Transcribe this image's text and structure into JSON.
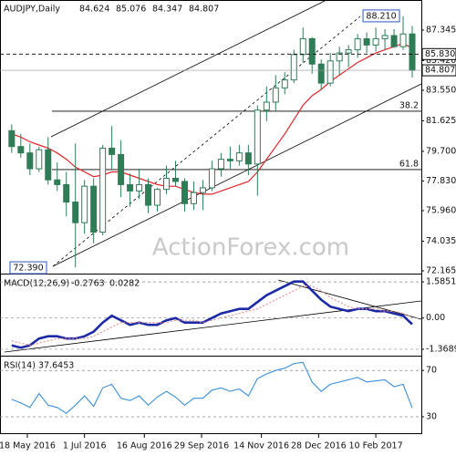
{
  "chart_data": [
    {
      "type": "candlestick",
      "title": "AUDJPY,Daily",
      "header_values": [
        84.624,
        85.076,
        84.347,
        84.807
      ],
      "x": [
        "2016-05-06",
        "2016-05-13",
        "2016-05-20",
        "2016-05-27",
        "2016-06-03",
        "2016-06-10",
        "2016-06-17",
        "2016-06-24",
        "2016-07-01",
        "2016-07-08",
        "2016-07-15",
        "2016-07-22",
        "2016-07-29",
        "2016-08-05",
        "2016-08-12",
        "2016-08-19",
        "2016-08-26",
        "2016-09-02",
        "2016-09-09",
        "2016-09-16",
        "2016-09-23",
        "2016-09-30",
        "2016-10-07",
        "2016-10-14",
        "2016-10-21",
        "2016-10-28",
        "2016-11-04",
        "2016-11-11",
        "2016-11-18",
        "2016-11-25",
        "2016-12-02",
        "2016-12-09",
        "2016-12-16",
        "2016-12-23",
        "2016-12-30",
        "2017-01-06",
        "2017-01-13",
        "2017-01-20",
        "2017-01-27",
        "2017-02-03",
        "2017-02-10",
        "2017-02-17",
        "2017-02-24",
        "2017-03-03",
        "2017-03-10"
      ],
      "open": [
        81.0,
        80.0,
        79.6,
        78.6,
        79.8,
        77.9,
        77.6,
        76.5,
        75.2,
        77.5,
        74.6,
        79.9,
        79.5,
        77.6,
        77.2,
        77.6,
        76.3,
        77.3,
        78.0,
        77.8,
        76.4,
        77.1,
        77.4,
        78.6,
        79.2,
        79.1,
        79.6,
        78.9,
        82.3,
        82.8,
        83.7,
        84.2,
        85.8,
        86.8,
        85.2,
        84.0,
        85.4,
        85.9,
        86.1,
        86.8,
        86.4,
        86.8,
        87.0,
        86.3,
        87.1
      ],
      "high": [
        81.4,
        80.8,
        80.2,
        80.0,
        80.6,
        79.0,
        78.4,
        80.2,
        77.9,
        78.0,
        80.1,
        81.3,
        80.4,
        78.3,
        78.6,
        78.0,
        77.4,
        78.8,
        79.1,
        78.0,
        77.8,
        77.9,
        79.1,
        79.6,
        80.0,
        80.1,
        80.1,
        82.6,
        83.8,
        84.5,
        84.7,
        86.1,
        87.5,
        86.9,
        85.5,
        85.9,
        86.3,
        86.4,
        87.1,
        87.2,
        87.5,
        87.4,
        87.4,
        88.21,
        87.6
      ],
      "low": [
        79.6,
        79.3,
        78.2,
        78.4,
        77.6,
        77.2,
        75.6,
        72.39,
        74.5,
        73.9,
        74.4,
        78.5,
        76.8,
        76.2,
        76.7,
        75.8,
        75.9,
        77.0,
        77.5,
        75.9,
        76.0,
        76.0,
        77.2,
        78.1,
        78.6,
        78.8,
        78.2,
        76.9,
        81.6,
        82.2,
        83.3,
        84.0,
        85.3,
        84.6,
        83.6,
        83.8,
        84.5,
        85.0,
        85.6,
        85.9,
        86.0,
        86.1,
        86.2,
        86.1,
        84.347
      ],
      "close": [
        80.0,
        79.6,
        78.6,
        79.8,
        77.9,
        77.6,
        76.5,
        75.2,
        77.5,
        74.6,
        79.9,
        79.5,
        77.6,
        77.2,
        77.6,
        76.3,
        77.3,
        78.0,
        77.8,
        76.4,
        77.1,
        77.4,
        78.6,
        79.2,
        79.1,
        79.6,
        78.9,
        82.3,
        82.8,
        83.7,
        84.2,
        85.8,
        86.8,
        85.2,
        84.0,
        85.4,
        85.9,
        86.1,
        86.8,
        86.4,
        86.8,
        87.0,
        86.3,
        87.1,
        84.807
      ],
      "color": "#2e7d57",
      "series": [
        {
          "color": "#e0262a",
          "values": [
            80.8,
            80.6,
            80.3,
            80.1,
            79.9,
            79.6,
            79.2,
            78.7,
            78.4,
            78.1,
            78.2,
            78.4,
            78.4,
            78.2,
            78.0,
            77.8,
            77.6,
            77.5,
            77.5,
            77.3,
            77.1,
            77.0,
            77.0,
            77.2,
            77.4,
            77.6,
            77.8,
            78.4,
            79.2,
            80.0,
            80.8,
            81.7,
            82.6,
            83.2,
            83.6,
            84.1,
            84.5,
            84.9,
            85.3,
            85.6,
            85.9,
            86.1,
            86.3,
            86.5,
            86.2
          ]
        }
      ],
      "xlim": [
        "2016-04-27",
        "2017-03-17"
      ],
      "xticks": [
        {
          "value": "2016-05-18",
          "label": "18 May 2016"
        },
        {
          "value": "2016-07-01",
          "label": "1 Jul 2016"
        },
        {
          "value": "2016-08-16",
          "label": "16 Aug 2016"
        },
        {
          "value": "2016-09-29",
          "label": "29 Sep 2016"
        },
        {
          "value": "2016-11-14",
          "label": "14 Nov 2016"
        },
        {
          "value": "2016-12-28",
          "label": "28 Dec 2016"
        },
        {
          "value": "2017-02-10",
          "label": "10 Feb 2017"
        }
      ],
      "ylim": [
        71.99,
        89.24
      ],
      "yticks": [
        87.345,
        {
          "value": 85.42,
          "label": "85.420"
        },
        {
          "value": 83.55,
          "label": "83.550"
        },
        81.625,
        {
          "value": 79.7,
          "label": "79.700"
        },
        {
          "value": 77.83,
          "label": "77.830"
        },
        {
          "value": 75.96,
          "label": "75.960"
        },
        74.035,
        72.165
      ],
      "annotations": [
        {
          "value": 88.21,
          "label": "88.210"
        },
        {
          "value": 72.39,
          "label": "72.390"
        },
        {
          "value": 85.83,
          "label": "85.830"
        }
      ],
      "fib_levels": [
        {
          "value": 82.23,
          "label": "38.2"
        },
        {
          "value": 78.55,
          "label": "61.8"
        }
      ],
      "watermark": "ActionForex.com"
    },
    {
      "type": "line",
      "title": "MACD(12,26,9)",
      "series": [
        {
          "color": "#1c2aa6",
          "values": [
            -1.2,
            -1.3,
            -1.2,
            -0.9,
            -0.8,
            -0.8,
            -0.9,
            -0.9,
            -0.8,
            -0.6,
            -0.2,
            0.1,
            -0.1,
            -0.3,
            -0.2,
            -0.3,
            -0.3,
            -0.1,
            0.0,
            -0.2,
            -0.2,
            -0.2,
            0.0,
            0.2,
            0.3,
            0.4,
            0.4,
            0.7,
            1.0,
            1.2,
            1.4,
            1.6,
            1.6,
            1.2,
            0.8,
            0.5,
            0.4,
            0.3,
            0.4,
            0.4,
            0.3,
            0.3,
            0.2,
            0.1,
            -0.2763
          ]
        },
        {
          "color": "#e58a8a",
          "values": [
            -1.0,
            -1.1,
            -1.2,
            -1.1,
            -1.0,
            -0.9,
            -0.9,
            -0.9,
            -0.9,
            -0.8,
            -0.6,
            -0.4,
            -0.2,
            -0.2,
            -0.2,
            -0.2,
            -0.2,
            -0.2,
            -0.1,
            -0.1,
            -0.1,
            -0.2,
            -0.1,
            0.0,
            0.1,
            0.2,
            0.3,
            0.4,
            0.6,
            0.8,
            1.0,
            1.2,
            1.4,
            1.4,
            1.2,
            0.9,
            0.7,
            0.5,
            0.4,
            0.4,
            0.4,
            0.3,
            0.3,
            0.2,
            0.0282
          ]
        }
      ],
      "ylim": [
        -1.652,
        1.909
      ],
      "yticks": [
        1.5851,
        {
          "value": 0,
          "label": "0.00"
        },
        -1.3689
      ]
    },
    {
      "type": "line",
      "title": "RSI(14)",
      "series": [
        {
          "color": "#3a8fd6",
          "values": [
            45,
            42,
            38,
            50,
            40,
            38,
            33,
            40,
            48,
            39,
            55,
            58,
            46,
            44,
            48,
            40,
            47,
            52,
            47,
            40,
            46,
            46,
            53,
            55,
            52,
            54,
            48,
            63,
            67,
            70,
            72,
            76,
            77,
            60,
            52,
            58,
            60,
            62,
            64,
            60,
            61,
            62,
            56,
            58,
            37.6453
          ]
        }
      ],
      "ylim": [
        15,
        82
      ],
      "yticks": [
        70,
        30
      ]
    }
  ]
}
